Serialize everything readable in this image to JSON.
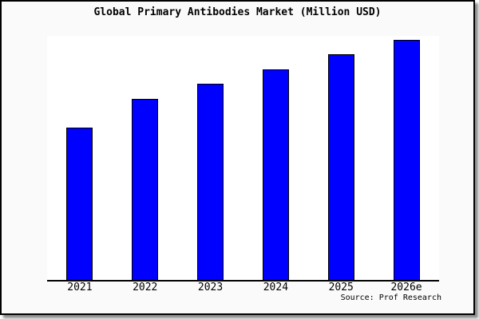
{
  "window": {
    "background_color": "#fafafa",
    "plot_background_color": "#ffffff",
    "border_color": "#000000"
  },
  "chart": {
    "title": "Global Primary Antibodies Market (Million USD)",
    "source_note": "Source: Prof Research",
    "bar_color": "#0000ff",
    "bar_border_color": "#000000"
  },
  "chart_data": {
    "type": "bar",
    "title": "Global Primary Antibodies Market (Million USD)",
    "categories": [
      "2021",
      "2022",
      "2023",
      "2024",
      "2025",
      "2026e"
    ],
    "values": [
      62,
      74,
      80,
      86,
      92,
      98
    ],
    "xlabel": "",
    "ylabel": "",
    "ylim": [
      0,
      100
    ],
    "value_axis_labeled": false,
    "grid": false,
    "legend": false,
    "annotations": [
      "Source: Prof Research"
    ]
  }
}
